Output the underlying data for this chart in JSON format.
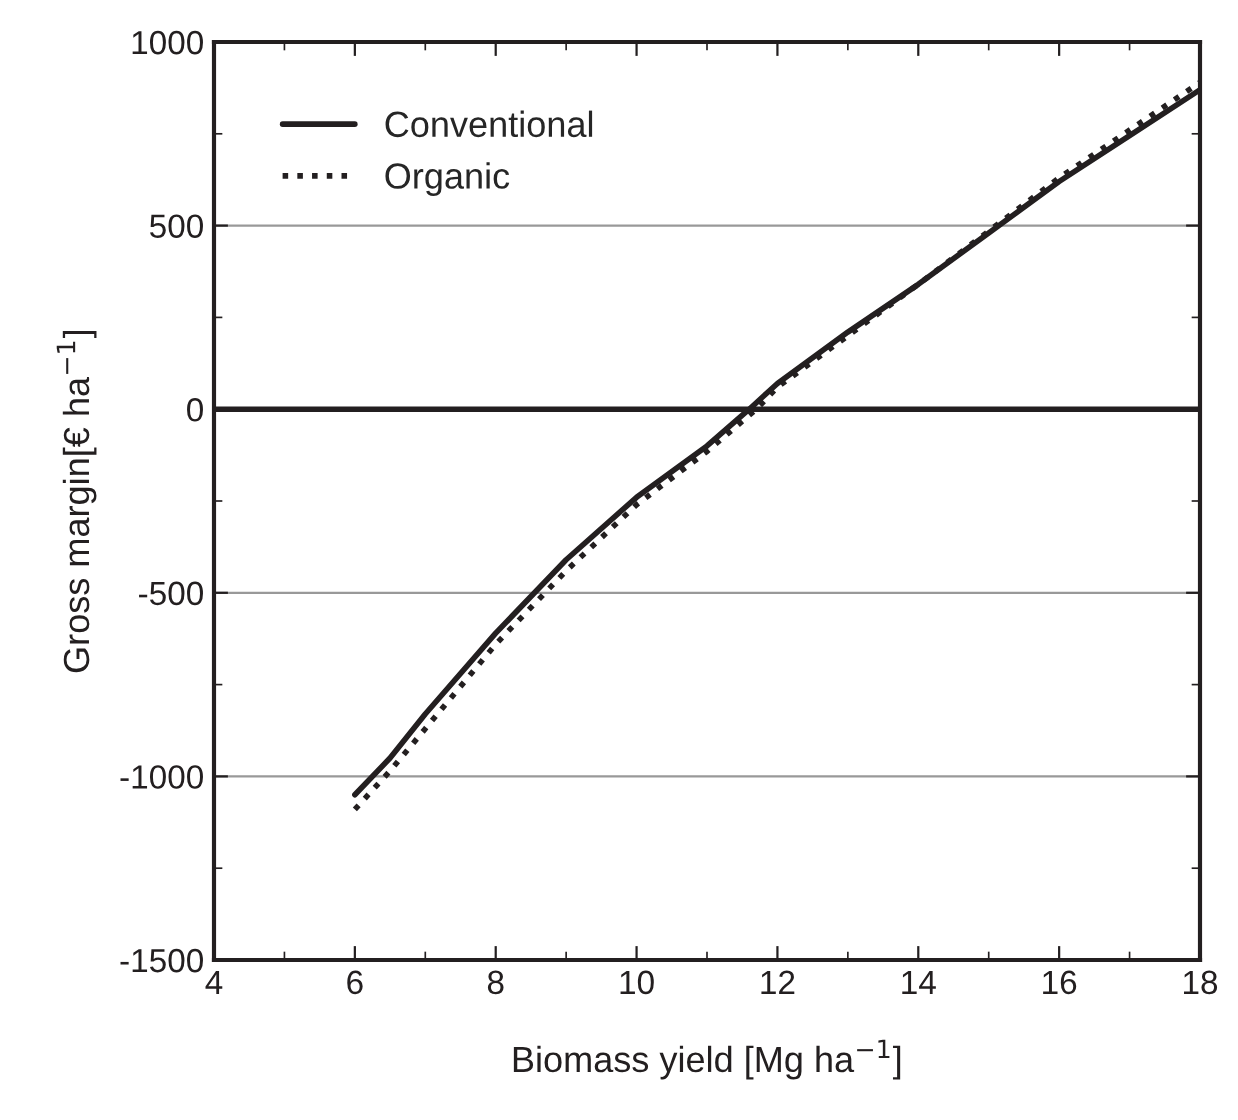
{
  "chart_data": {
    "type": "line",
    "xlabel": "Biomass yield [Mg ha$^{−1}$]",
    "ylabel": "Gross margin[€ ha$^{−1}$]",
    "xlim": [
      4,
      18
    ],
    "xticks": [
      4,
      6,
      8,
      10,
      12,
      14,
      16,
      18
    ],
    "ylim": [
      -1500,
      1000
    ],
    "yticks": [
      -1500,
      -1000,
      -500,
      0,
      500,
      1000
    ],
    "grid": "y",
    "legend": "top left",
    "ref_lines": [
      {
        "axis": "y",
        "value": 0,
        "color": "#231f20",
        "line_style": "solid"
      }
    ],
    "series": [
      {
        "name": "Conventional",
        "color": "#231f20",
        "line_style": "solid",
        "x": [
          6,
          6.5,
          7,
          8,
          9,
          10,
          11,
          11.6,
          12,
          13,
          14,
          15,
          16,
          17,
          18
        ],
        "values": [
          -1050,
          -950,
          -830,
          -610,
          -410,
          -240,
          -100,
          0,
          70,
          210,
          340,
          480,
          620,
          745,
          870
        ]
      },
      {
        "name": "Organic",
        "color": "#231f20",
        "line_style": "dotted",
        "x": [
          6,
          6.5,
          7,
          8,
          9,
          10,
          11,
          11.7,
          12,
          13,
          14,
          15,
          16,
          17,
          18
        ],
        "values": [
          -1090,
          -985,
          -870,
          -640,
          -440,
          -260,
          -115,
          0,
          60,
          200,
          340,
          485,
          630,
          760,
          890
        ]
      }
    ]
  }
}
